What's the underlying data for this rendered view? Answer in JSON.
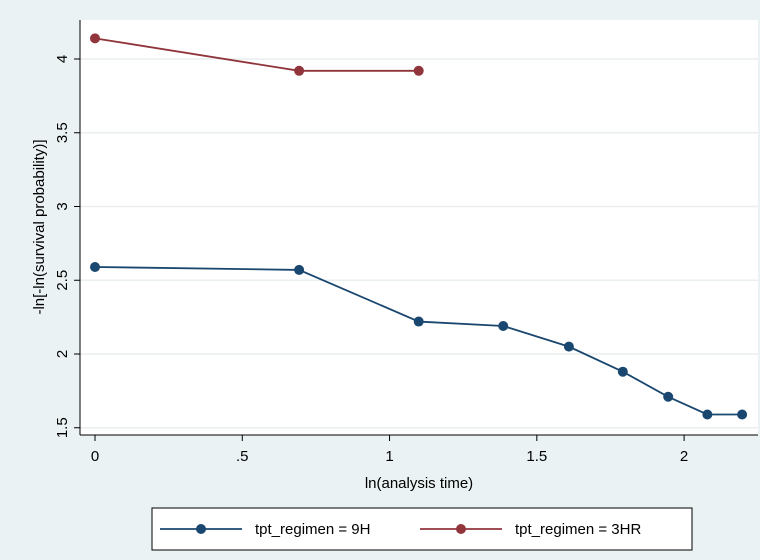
{
  "chart_data": {
    "type": "line",
    "title": "",
    "xlabel": "ln(analysis time)",
    "ylabel": "-ln[-ln(survival probability)]",
    "xlim": [
      0,
      2.2
    ],
    "ylim": [
      1.5,
      4.1
    ],
    "xticks": [
      {
        "value": 0,
        "label": "0"
      },
      {
        "value": 0.5,
        "label": ".5"
      },
      {
        "value": 1,
        "label": "1"
      },
      {
        "value": 1.5,
        "label": "1.5"
      },
      {
        "value": 2,
        "label": "2"
      }
    ],
    "yticks": [
      {
        "value": 1.5,
        "label": "1.5"
      },
      {
        "value": 2,
        "label": "2"
      },
      {
        "value": 2.5,
        "label": "2.5"
      },
      {
        "value": 3,
        "label": "3"
      },
      {
        "value": 3.5,
        "label": "3.5"
      },
      {
        "value": 4,
        "label": "4"
      }
    ],
    "grid": true,
    "legend_position": "bottom",
    "series": [
      {
        "name": "tpt_regimen = 9H",
        "color": "#1a476f",
        "points": [
          {
            "x": 0,
            "y": 2.59
          },
          {
            "x": 0.693,
            "y": 2.57
          },
          {
            "x": 1.099,
            "y": 2.22
          },
          {
            "x": 1.386,
            "y": 2.19
          },
          {
            "x": 1.609,
            "y": 2.05
          },
          {
            "x": 1.792,
            "y": 1.88
          },
          {
            "x": 1.946,
            "y": 1.71
          },
          {
            "x": 2.079,
            "y": 1.59
          },
          {
            "x": 2.197,
            "y": 1.59
          }
        ]
      },
      {
        "name": "tpt_regimen = 3HR",
        "color": "#90353b",
        "points": [
          {
            "x": 0,
            "y": 4.14
          },
          {
            "x": 0.693,
            "y": 3.92
          },
          {
            "x": 1.099,
            "y": 3.92
          }
        ]
      }
    ]
  }
}
